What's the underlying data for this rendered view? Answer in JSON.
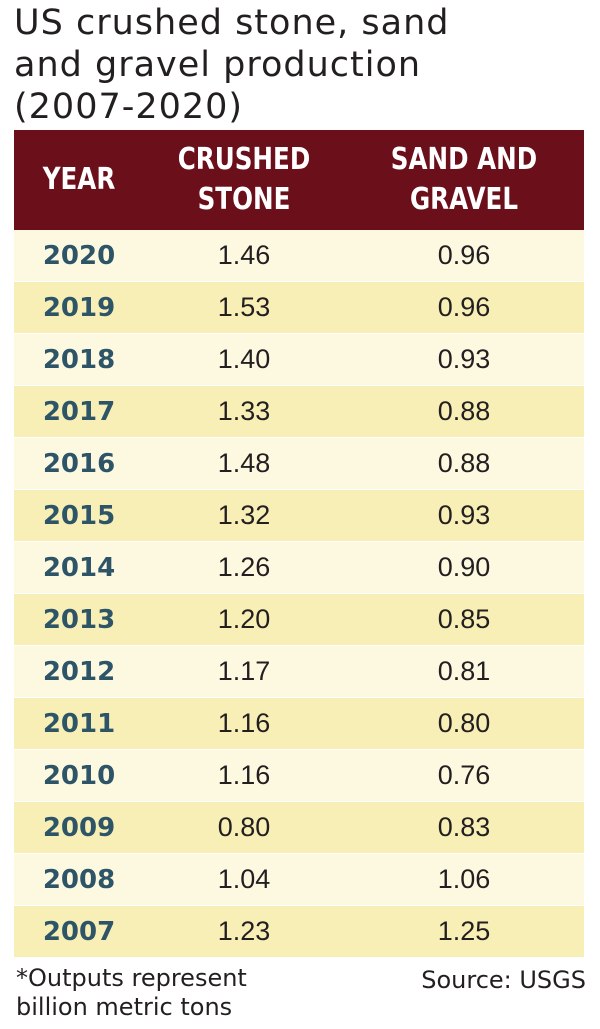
{
  "title": {
    "line1": "US crushed stone, sand",
    "line2": "and gravel production",
    "line3": "(2007-2020)"
  },
  "chart_data": {
    "type": "table",
    "title": "US crushed stone, sand and gravel production (2007-2020)",
    "columns": [
      {
        "line1": "YEAR",
        "line2": ""
      },
      {
        "line1": "CRUSHED",
        "line2": "STONE"
      },
      {
        "line1": "SAND AND",
        "line2": "GRAVEL"
      }
    ],
    "rows": [
      {
        "year": "2020",
        "crushed_stone": "1.46",
        "sand_and_gravel": "0.96"
      },
      {
        "year": "2019",
        "crushed_stone": "1.53",
        "sand_and_gravel": "0.96"
      },
      {
        "year": "2018",
        "crushed_stone": "1.40",
        "sand_and_gravel": "0.93"
      },
      {
        "year": "2017",
        "crushed_stone": "1.33",
        "sand_and_gravel": "0.88"
      },
      {
        "year": "2016",
        "crushed_stone": "1.48",
        "sand_and_gravel": "0.88"
      },
      {
        "year": "2015",
        "crushed_stone": "1.32",
        "sand_and_gravel": "0.93"
      },
      {
        "year": "2014",
        "crushed_stone": "1.26",
        "sand_and_gravel": "0.90"
      },
      {
        "year": "2013",
        "crushed_stone": "1.20",
        "sand_and_gravel": "0.85"
      },
      {
        "year": "2012",
        "crushed_stone": "1.17",
        "sand_and_gravel": "0.81"
      },
      {
        "year": "2011",
        "crushed_stone": "1.16",
        "sand_and_gravel": "0.80"
      },
      {
        "year": "2010",
        "crushed_stone": "1.16",
        "sand_and_gravel": "0.76"
      },
      {
        "year": "2009",
        "crushed_stone": "0.80",
        "sand_and_gravel": "0.83"
      },
      {
        "year": "2008",
        "crushed_stone": "1.04",
        "sand_and_gravel": "1.06"
      },
      {
        "year": "2007",
        "crushed_stone": "1.23",
        "sand_and_gravel": "1.25"
      }
    ]
  },
  "footnote": {
    "line1": "*Outputs represent",
    "line2": "billion metric tons"
  },
  "source": "Source: USGS",
  "colors": {
    "header_background": "#6b0f1a",
    "row_light": "#fdf9e1",
    "row_dark": "#f8efb6",
    "year_text": "#2e5468"
  }
}
